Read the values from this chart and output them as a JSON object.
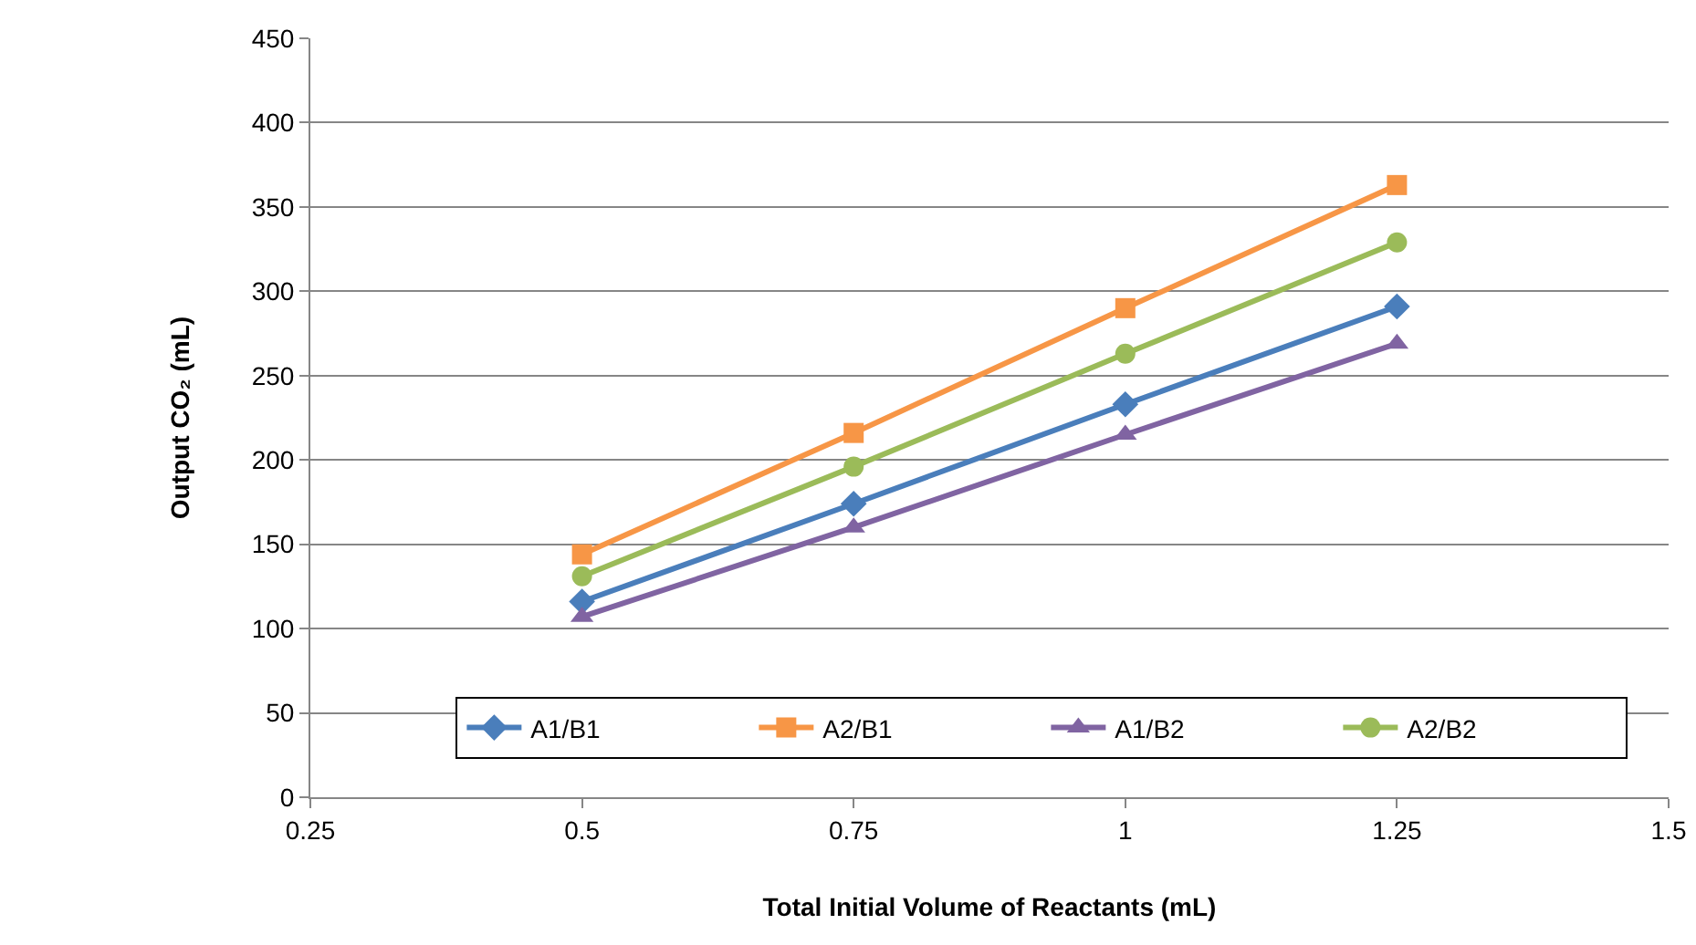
{
  "chart_data": {
    "type": "line",
    "xlabel": "Total Initial Volume of Reactants (mL)",
    "ylabel": "Output CO₂ (mL)",
    "x": [
      0.5,
      0.75,
      1,
      1.25
    ],
    "series": [
      {
        "name": "A1/B1",
        "color": "#4a7ebb",
        "marker": "diamond",
        "values": [
          116,
          174,
          233,
          291
        ]
      },
      {
        "name": "A2/B1",
        "color": "#f79646",
        "marker": "square",
        "values": [
          144,
          216,
          290,
          363
        ]
      },
      {
        "name": "A1/B2",
        "color": "#8064a2",
        "marker": "triangle",
        "values": [
          107,
          160,
          215,
          269
        ]
      },
      {
        "name": "A2/B2",
        "color": "#9bbb59",
        "marker": "circle",
        "values": [
          131,
          196,
          263,
          329
        ]
      }
    ],
    "xlim": [
      0.25,
      1.5
    ],
    "xticks": [
      0.25,
      0.5,
      0.75,
      1,
      1.25,
      1.5
    ],
    "ylim": [
      0,
      450
    ],
    "yticks": [
      0,
      50,
      100,
      150,
      200,
      250,
      300,
      350,
      400,
      450
    ],
    "grid": "y",
    "legend": "bottom right",
    "line_style": "solid"
  }
}
